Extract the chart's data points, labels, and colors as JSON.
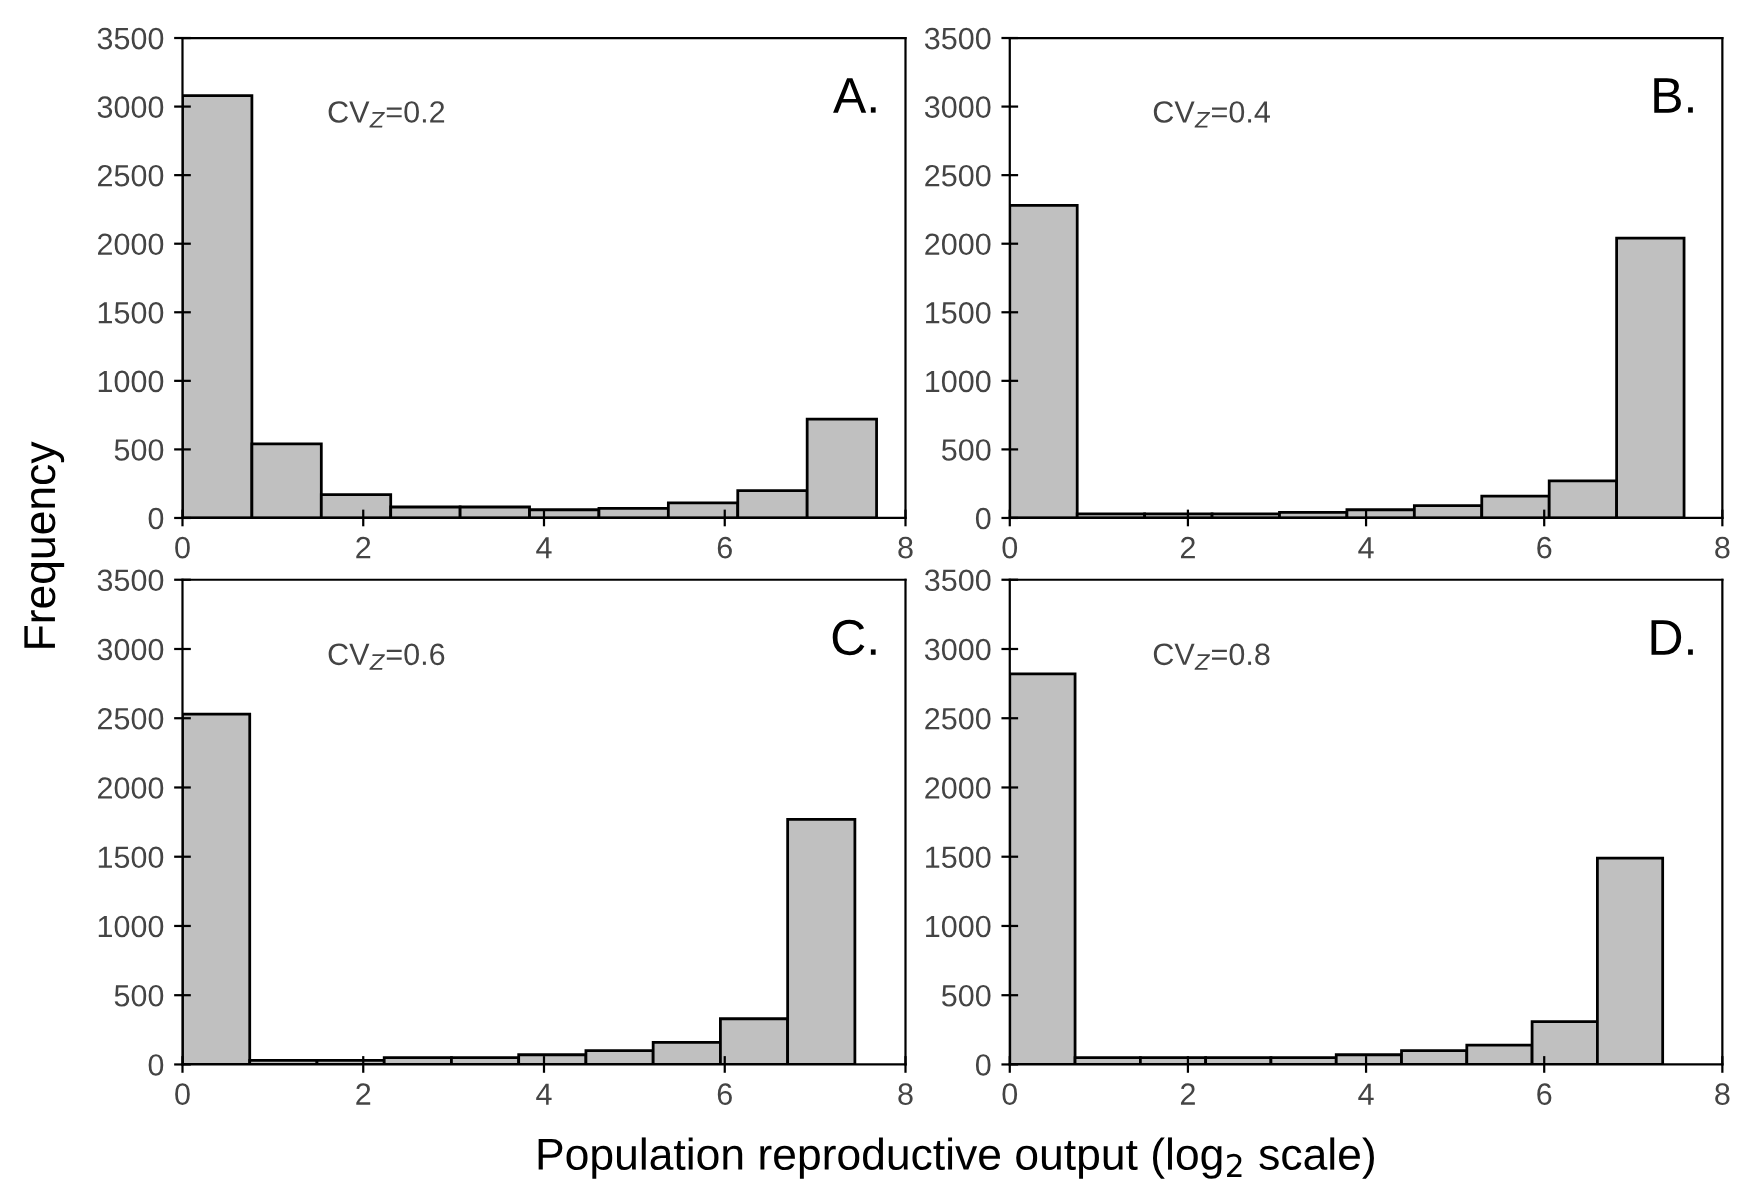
{
  "chart_data": [
    {
      "type": "histogram",
      "ylabel": "Frequency",
      "annotations": [
        "A.",
        "CV$_{Z}$=0.2"
      ],
      "bins": [
        0,
        0.768,
        1.536,
        2.304,
        3.072,
        3.84,
        4.608,
        5.376,
        6.144,
        6.912,
        7.68
      ],
      "values": [
        3080,
        540,
        170,
        80,
        80,
        60,
        70,
        110,
        200,
        720
      ],
      "color": "#c0c0c0",
      "xlim": [
        0,
        8
      ],
      "xticks": [
        0,
        2,
        4,
        6,
        8
      ],
      "ylim": [
        0,
        3500
      ],
      "yticks": [
        0,
        500,
        1000,
        1500,
        2000,
        2500,
        3000,
        3500
      ],
      "grid": false
    },
    {
      "type": "histogram",
      "annotations": [
        "B.",
        "CV$_{Z}$=0.4"
      ],
      "bins": [
        0,
        0.757,
        1.514,
        2.271,
        3.028,
        3.785,
        4.542,
        5.299,
        6.056,
        6.813,
        7.57
      ],
      "values": [
        2280,
        30,
        30,
        30,
        40,
        60,
        90,
        160,
        270,
        2040
      ],
      "color": "#c0c0c0",
      "xlim": [
        0,
        8
      ],
      "xticks": [
        0,
        2,
        4,
        6,
        8
      ],
      "ylim": [
        0,
        3500
      ],
      "yticks": [
        0,
        500,
        1000,
        1500,
        2000,
        2500,
        3000,
        3500
      ],
      "grid": false
    },
    {
      "type": "histogram",
      "xlabel": "Population reproductive output (log$_{2}$ scale)",
      "annotations": [
        "C.",
        "CV$_{Z}$=0.6"
      ],
      "bins": [
        0,
        0.744,
        1.488,
        2.232,
        2.976,
        3.72,
        4.464,
        5.208,
        5.952,
        6.696,
        7.44
      ],
      "values": [
        2530,
        30,
        30,
        50,
        50,
        70,
        100,
        160,
        330,
        1770
      ],
      "color": "#c0c0c0",
      "xlim": [
        0,
        8
      ],
      "xticks": [
        0,
        2,
        4,
        6,
        8
      ],
      "ylim": [
        0,
        3500
      ],
      "yticks": [
        0,
        500,
        1000,
        1500,
        2000,
        2500,
        3000,
        3500
      ],
      "grid": false
    },
    {
      "type": "histogram",
      "annotations": [
        "D.",
        "CV$_{Z}$=0.8"
      ],
      "bins": [
        0,
        0.733,
        1.466,
        2.199,
        2.932,
        3.665,
        4.398,
        5.131,
        5.864,
        6.597,
        7.33
      ],
      "values": [
        2820,
        50,
        50,
        50,
        50,
        70,
        100,
        140,
        310,
        1490
      ],
      "color": "#c0c0c0",
      "xlim": [
        0,
        8
      ],
      "xticks": [
        0,
        2,
        4,
        6,
        8
      ],
      "ylim": [
        0,
        3500
      ],
      "yticks": [
        0,
        500,
        1000,
        1500,
        2000,
        2500,
        3000,
        3500
      ],
      "grid": false
    }
  ]
}
